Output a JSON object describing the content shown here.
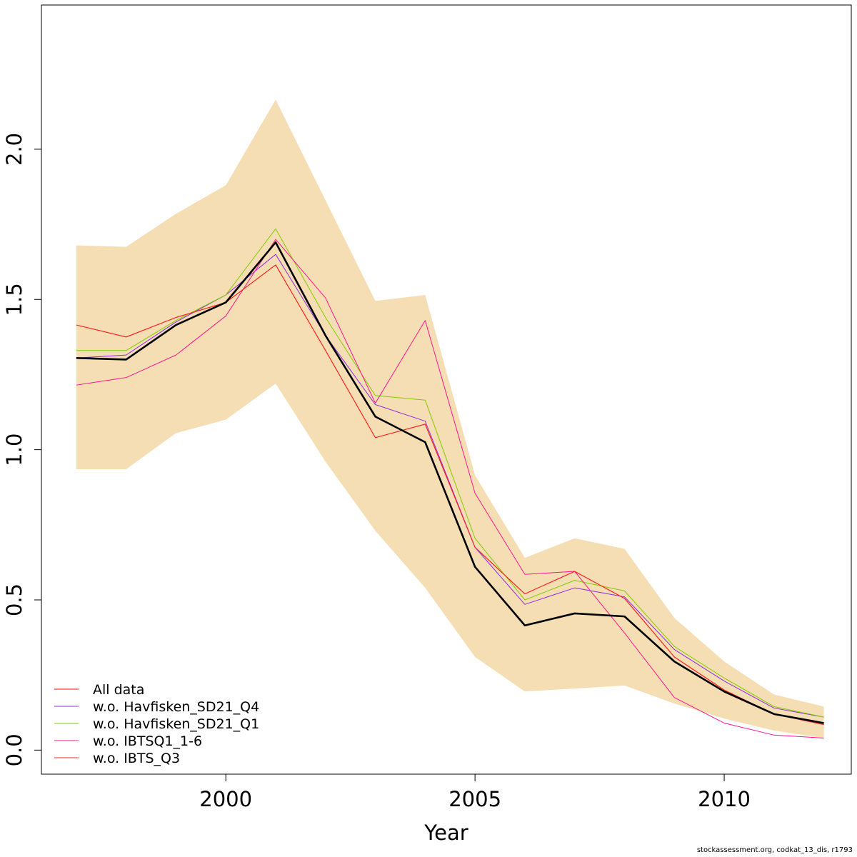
{
  "chart_data": {
    "type": "line",
    "xlabel": "Year",
    "ylabel": "",
    "xlim": [
      1996.3,
      2012.55
    ],
    "ylim": [
      -0.08,
      2.48
    ],
    "x_ticks": [
      2000,
      2005,
      2010
    ],
    "y_ticks": [
      0.0,
      0.5,
      1.0,
      1.5,
      2.0
    ],
    "x_tick_labels": [
      "2000",
      "2005",
      "2010"
    ],
    "y_tick_labels": [
      "0.0",
      "0.5",
      "1.0",
      "1.5",
      "2.0"
    ],
    "grid": false,
    "legend_position": "bottom-left",
    "x": [
      1997,
      1998,
      1999,
      2000,
      2001,
      2002,
      2003,
      2004,
      2005,
      2006,
      2007,
      2008,
      2009,
      2010,
      2011,
      2012
    ],
    "band": {
      "color": "#f5deb3",
      "upper": [
        1.68,
        1.675,
        1.785,
        1.88,
        2.165,
        1.83,
        1.495,
        1.515,
        0.915,
        0.64,
        0.705,
        0.67,
        0.44,
        0.295,
        0.185,
        0.145
      ],
      "lower": [
        0.935,
        0.935,
        1.055,
        1.1,
        1.22,
        0.96,
        0.73,
        0.54,
        0.31,
        0.195,
        0.205,
        0.215,
        0.155,
        0.105,
        0.065,
        0.04
      ]
    },
    "series": [
      {
        "name": "All data",
        "color": "#ff0000",
        "width": 1,
        "values": [
          1.415,
          1.375,
          1.44,
          1.49,
          1.615,
          1.33,
          1.04,
          1.085,
          0.675,
          0.52,
          0.595,
          0.505,
          0.31,
          0.2,
          0.12,
          0.085
        ]
      },
      {
        "name": "w.o. Havfisken_SD21_Q4",
        "color": "#8a2be2",
        "width": 1,
        "values": [
          1.305,
          1.315,
          1.425,
          1.515,
          1.65,
          1.38,
          1.15,
          1.095,
          0.675,
          0.485,
          0.54,
          0.51,
          0.335,
          0.23,
          0.14,
          0.11
        ]
      },
      {
        "name": "w.o. Havfisken_SD21_Q1",
        "color": "#7fcc00",
        "width": 1,
        "values": [
          1.33,
          1.33,
          1.43,
          1.515,
          1.735,
          1.44,
          1.18,
          1.165,
          0.705,
          0.5,
          0.565,
          0.53,
          0.345,
          0.24,
          0.145,
          0.11
        ]
      },
      {
        "name": "w.o. IBTSQ1_1-6",
        "color": "#ff1493",
        "width": 1,
        "values": [
          1.215,
          1.24,
          1.315,
          1.445,
          1.7,
          1.505,
          1.155,
          1.43,
          0.855,
          0.585,
          0.595,
          0.39,
          0.175,
          0.09,
          0.05,
          0.04
        ]
      },
      {
        "name": "w.o. IBTS_Q3",
        "color": "#ff2020",
        "width": 1,
        "values": [
          1.415,
          1.375,
          1.44,
          1.49,
          1.615,
          1.33,
          1.04,
          1.085,
          0.675,
          0.52,
          0.595,
          0.505,
          0.31,
          0.2,
          0.12,
          0.085
        ]
      },
      {
        "name": "",
        "color": "#000000",
        "width": 2.6,
        "values": [
          1.305,
          1.3,
          1.415,
          1.49,
          1.69,
          1.38,
          1.11,
          1.025,
          0.61,
          0.415,
          0.455,
          0.445,
          0.295,
          0.195,
          0.12,
          0.09
        ]
      }
    ],
    "legend": [
      "All data",
      "w.o. Havfisken_SD21_Q4",
      "w.o. Havfisken_SD21_Q1",
      "w.o. IBTSQ1_1-6",
      "w.o. IBTS_Q3"
    ],
    "legend_colors": [
      "#ff0000",
      "#8a2be2",
      "#7fcc00",
      "#ff1493",
      "#ff2020"
    ]
  },
  "footnote": "stockassessment.org, codkat_13_dis, r1793"
}
